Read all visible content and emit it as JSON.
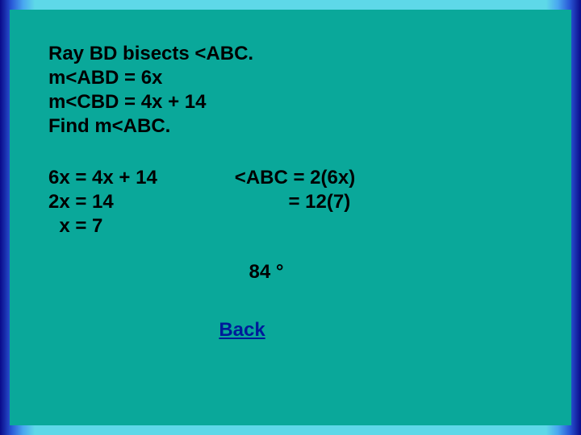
{
  "slide": {
    "background_color": "#0aa89a",
    "border_gradient_colors": [
      "#0a0a8a",
      "#2a5ad8",
      "#4aa8f0",
      "#5ed8e8"
    ],
    "text_color": "#000000",
    "link_color": "#001b9a",
    "font_family": "Verdana",
    "font_size_pt": 18,
    "font_weight": "bold"
  },
  "problem": {
    "line1": "Ray BD bisects <ABC.",
    "line2": "m<ABD = 6x",
    "line3": "m<CBD = 4x + 14",
    "line4": "Find m<ABC."
  },
  "work_left": {
    "line1": "6x = 4x + 14",
    "line2": "2x = 14",
    "line3": "  x = 7"
  },
  "work_right": {
    "line1": "<ABC = 2(6x)",
    "line2": "          = 12(7)"
  },
  "answer": "84 °",
  "back_label": "Back"
}
